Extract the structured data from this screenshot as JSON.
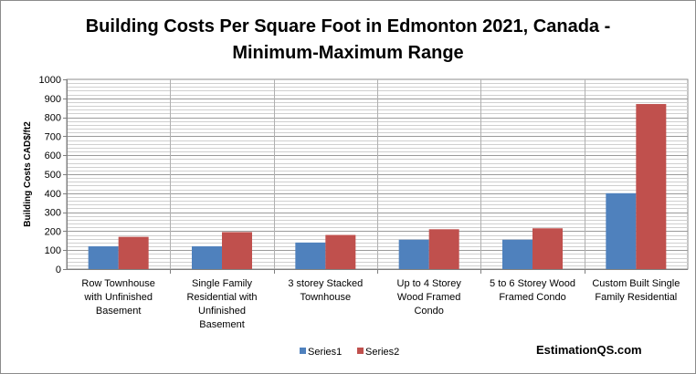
{
  "chart_data": {
    "type": "bar",
    "title": "Building Costs Per Square Foot in Edmonton 2021, Canada - Minimum-Maximum Range",
    "title_lines": [
      "Building Costs Per Square Foot in Edmonton 2021, Canada -",
      "Minimum-Maximum Range"
    ],
    "ylabel": "Building Costs  CAD$/ft2",
    "xlabel": "",
    "ylim": [
      0,
      1000
    ],
    "y_ticks": [
      0,
      100,
      200,
      300,
      400,
      500,
      600,
      700,
      800,
      900,
      1000
    ],
    "grid": true,
    "legend_position": "bottom",
    "categories": [
      "Row Townhouse with Unfinished Basement",
      "Single Family Residential with Unfinished Basement",
      "3 storey Stacked Townhouse",
      "Up to 4 Storey Wood Framed Condo",
      "5 to 6 Storey Wood Framed Condo",
      "Custom Built Single Family Residential"
    ],
    "category_lines": [
      [
        "Row Townhouse",
        "with Unfinished",
        "Basement"
      ],
      [
        "Single Family",
        "Residential with",
        "Unfinished",
        "Basement"
      ],
      [
        "3 storey Stacked",
        "Townhouse"
      ],
      [
        "Up to 4 Storey",
        "Wood Framed",
        "Condo"
      ],
      [
        "5 to 6 Storey Wood",
        "Framed Condo"
      ],
      [
        "Custom Built Single",
        "Family Residential"
      ]
    ],
    "series": [
      {
        "name": "Series1",
        "color": "#4f81bd",
        "values": [
          120,
          120,
          140,
          155,
          155,
          400
        ]
      },
      {
        "name": "Series2",
        "color": "#c0504d",
        "values": [
          170,
          195,
          180,
          210,
          215,
          870
        ]
      }
    ]
  },
  "watermark": "EstimationQS.com"
}
